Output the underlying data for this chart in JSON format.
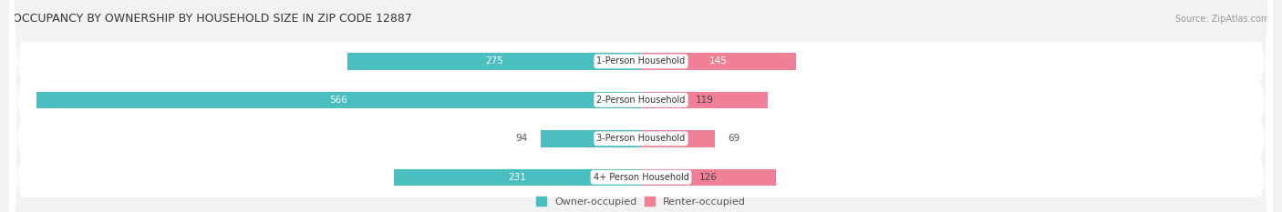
{
  "title": "OCCUPANCY BY OWNERSHIP BY HOUSEHOLD SIZE IN ZIP CODE 12887",
  "source": "Source: ZipAtlas.com",
  "categories": [
    "1-Person Household",
    "2-Person Household",
    "3-Person Household",
    "4+ Person Household"
  ],
  "owner_values": [
    275,
    566,
    94,
    231
  ],
  "renter_values": [
    145,
    119,
    69,
    126
  ],
  "owner_color": "#4BBFBF",
  "renter_color": "#F08098",
  "bg_color": "#f2f2f2",
  "title_bg_color": "#ffffff",
  "bar_bg_color": "#ffffff",
  "axis_max": 600,
  "title_fontsize": 9,
  "source_fontsize": 7,
  "tick_fontsize": 8,
  "bar_label_fontsize": 7.5,
  "category_fontsize": 7,
  "legend_fontsize": 8
}
